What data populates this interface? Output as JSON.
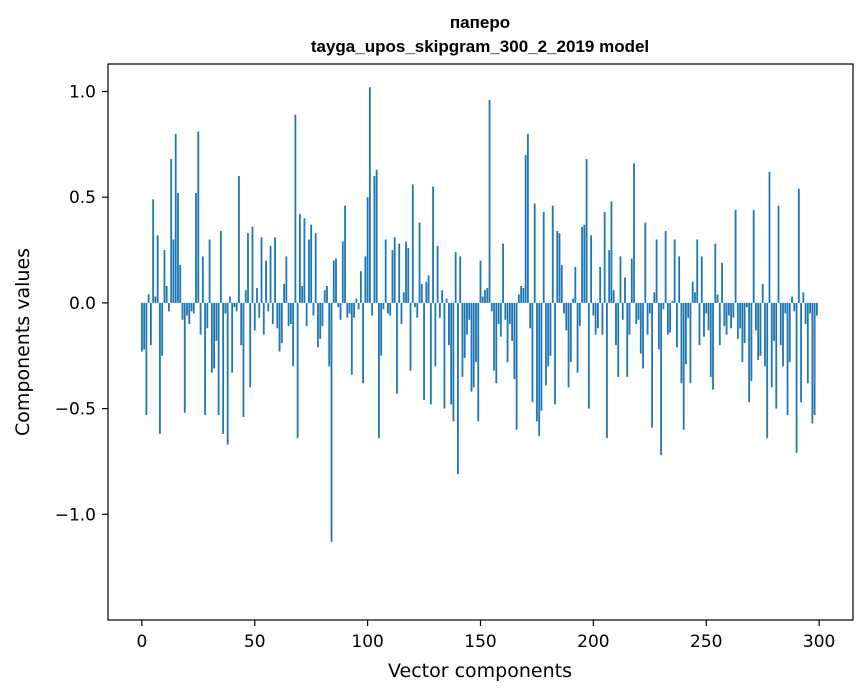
{
  "chart_data": {
    "type": "bar",
    "title": "паперо",
    "subtitle": "tayga_upos_skipgram_300_2_2019 model",
    "xlabel": "Vector components",
    "ylabel": "Components values",
    "xlim": [
      -15,
      315
    ],
    "ylim": [
      -1.5,
      1.13
    ],
    "x_ticks": [
      0,
      50,
      100,
      150,
      200,
      250,
      300
    ],
    "y_ticks": [
      1.0,
      0.5,
      0.0,
      -0.5,
      -1.0
    ],
    "x_tick_labels": [
      "0",
      "50",
      "100",
      "150",
      "200",
      "250",
      "300"
    ],
    "y_tick_labels": [
      "1.0",
      "0.5",
      "0.0",
      "−0.5",
      "−1.0"
    ],
    "bar_color": "#1f77b4",
    "grid": false,
    "values": [
      -0.23,
      -0.22,
      -0.53,
      0.04,
      -0.2,
      0.49,
      0.03,
      0.32,
      -0.62,
      -0.25,
      0.25,
      0.08,
      -0.04,
      0.68,
      0.3,
      0.8,
      0.52,
      0.18,
      -0.08,
      -0.52,
      -0.06,
      -0.1,
      -0.04,
      -0.05,
      0.52,
      0.81,
      -0.15,
      0.22,
      -0.53,
      -0.12,
      0.3,
      -0.33,
      -0.31,
      -0.18,
      -0.53,
      0.34,
      -0.62,
      -0.05,
      -0.67,
      0.03,
      -0.33,
      -0.02,
      -0.04,
      0.6,
      -0.2,
      -0.54,
      0.06,
      0.33,
      -0.4,
      0.36,
      -0.13,
      0.07,
      -0.07,
      0.31,
      -0.15,
      0.2,
      -0.04,
      0.27,
      -0.1,
      0.31,
      -0.12,
      -0.23,
      -0.19,
      0.09,
      0.22,
      -0.11,
      -0.1,
      -0.3,
      0.89,
      -0.64,
      0.42,
      0.08,
      0.4,
      -0.11,
      0.3,
      0.37,
      -0.06,
      0.33,
      -0.21,
      -0.17,
      -0.11,
      0.06,
      0.08,
      -0.3,
      -1.13,
      0.2,
      0.21,
      -0.02,
      -0.08,
      0.29,
      0.46,
      -0.07,
      -0.05,
      -0.34,
      -0.07,
      0.02,
      -0.03,
      0.15,
      -0.38,
      0.22,
      0.5,
      1.02,
      -0.06,
      0.6,
      0.63,
      -0.64,
      -0.25,
      -0.03,
      0.3,
      -0.05,
      -0.06,
      0.25,
      0.31,
      -0.43,
      0.28,
      -0.1,
      0.05,
      0.29,
      0.26,
      -0.32,
      0.56,
      -0.02,
      -0.07,
      0.38,
      0.09,
      -0.46,
      0.1,
      0.13,
      -0.48,
      0.55,
      -0.3,
      0.27,
      -0.07,
      0.06,
      -0.5,
      0.02,
      -0.2,
      -0.48,
      -0.56,
      0.24,
      -0.81,
      0.22,
      -0.35,
      -0.26,
      -0.15,
      -0.08,
      -0.42,
      -0.4,
      -0.28,
      -0.56,
      0.2,
      0.03,
      0.06,
      0.07,
      0.96,
      -0.04,
      -0.32,
      -0.38,
      -0.1,
      -0.16,
      0.28,
      -0.08,
      -0.28,
      -0.1,
      -0.18,
      -0.36,
      -0.6,
      0.04,
      0.08,
      0.07,
      0.7,
      0.8,
      -0.12,
      -0.47,
      0.47,
      -0.56,
      -0.63,
      -0.51,
      0.43,
      -0.39,
      -0.3,
      -0.25,
      0.46,
      -0.48,
      0.34,
      0.33,
      0.18,
      -0.05,
      -0.13,
      -0.4,
      -0.28,
      0.02,
      0.17,
      -0.33,
      -0.11,
      0.36,
      0.37,
      0.68,
      -0.5,
      0.32,
      -0.06,
      -0.15,
      -0.12,
      0.17,
      -0.15,
      0.43,
      -0.64,
      0.25,
      0.48,
      0.06,
      -0.2,
      -0.35,
      0.22,
      -0.08,
      0.12,
      -0.35,
      -0.15,
      0.21,
      0.66,
      -0.1,
      -0.08,
      -0.24,
      -0.31,
      0.38,
      -0.15,
      -0.05,
      -0.59,
      0.05,
      0.3,
      -0.22,
      -0.72,
      -0.03,
      0.34,
      -0.15,
      -0.14,
      0.01,
      0.3,
      -0.21,
      0.22,
      -0.38,
      -0.6,
      -0.29,
      -0.07,
      -0.38,
      0.1,
      0.05,
      0.3,
      -0.2,
      0.22,
      -0.16,
      -0.05,
      -0.13,
      -0.35,
      -0.41,
      0.28,
      0.04,
      -0.2,
      0.19,
      -0.11,
      -0.15,
      -0.06,
      -0.12,
      -0.07,
      0.44,
      -0.17,
      -0.12,
      -0.28,
      -0.19,
      -0.02,
      -0.47,
      -0.37,
      0.44,
      -0.13,
      -0.27,
      -0.25,
      0.09,
      -0.3,
      -0.64,
      0.62,
      -0.4,
      -0.18,
      -0.5,
      0.46,
      -0.2,
      -0.3,
      -0.05,
      -0.53,
      -0.28,
      0.03,
      -0.04,
      -0.71,
      0.54,
      -0.47,
      0.05,
      -0.1,
      -0.38,
      -0.05,
      -0.57,
      -0.53,
      -0.06
    ]
  }
}
